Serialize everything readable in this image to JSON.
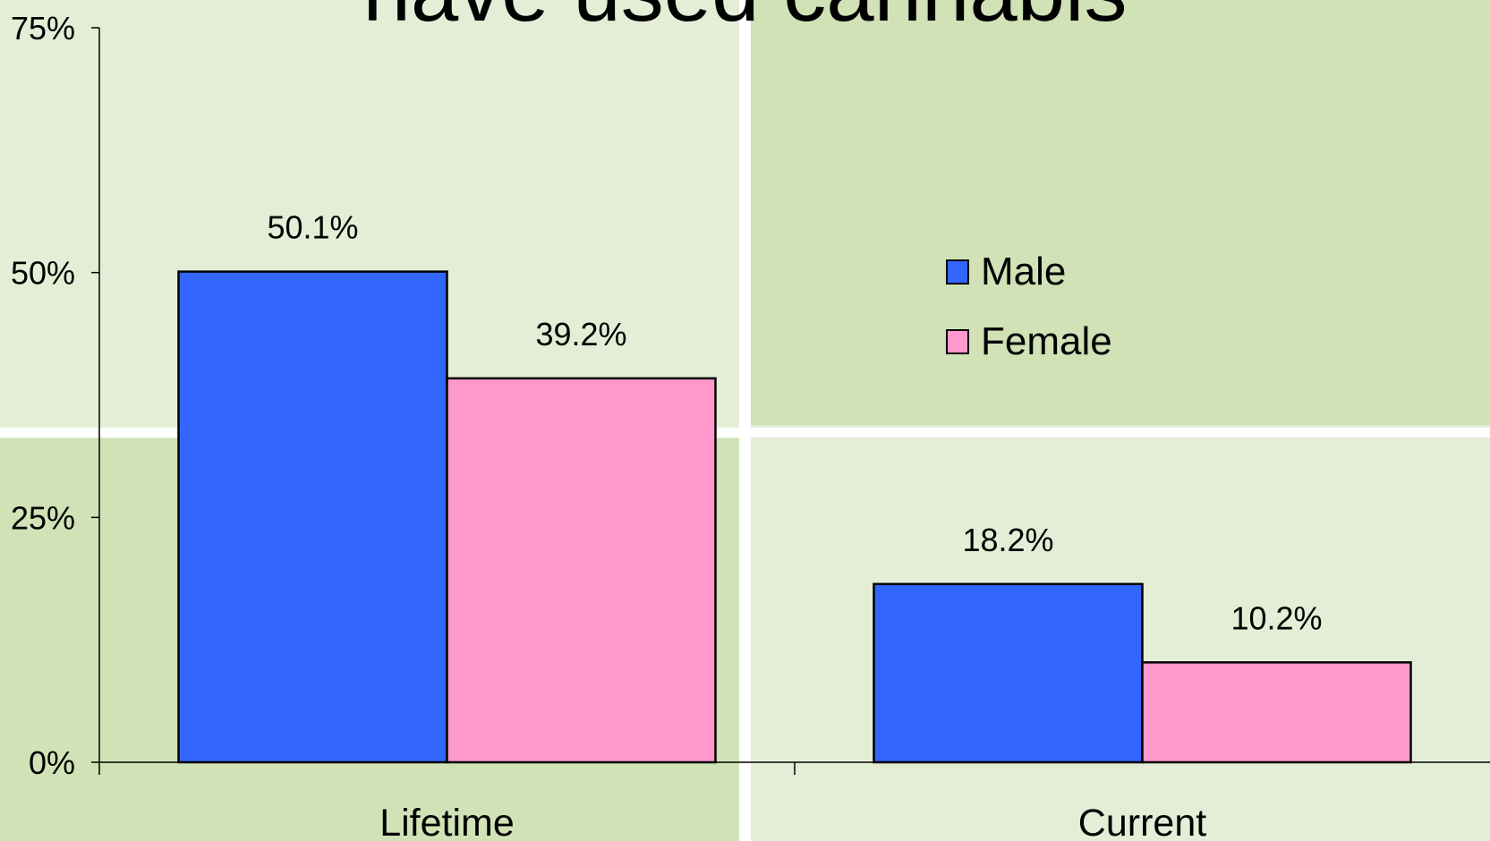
{
  "chart_data": {
    "type": "bar",
    "title": "have used cannabis",
    "categories": [
      "Lifetime",
      "Current"
    ],
    "series": [
      {
        "name": "Male",
        "values": [
          50.1,
          18.2
        ],
        "labels": [
          "50.1%",
          "18.2%"
        ],
        "color": "#3366ff"
      },
      {
        "name": "Female",
        "values": [
          39.2,
          10.2
        ],
        "labels": [
          "39.2%",
          "10.2%"
        ],
        "color": "#ff99cc"
      }
    ],
    "ylim": [
      0,
      75
    ],
    "yticks": [
      0,
      25,
      50,
      75
    ],
    "ytick_labels": [
      "0%",
      "25%",
      "50%",
      "75%"
    ],
    "xlabel": "",
    "ylabel": "",
    "grid": false,
    "legend_position": "right"
  },
  "background": {
    "light": "#e4eed7",
    "dark": "#d0e2b6",
    "divider": "#ffffff"
  }
}
